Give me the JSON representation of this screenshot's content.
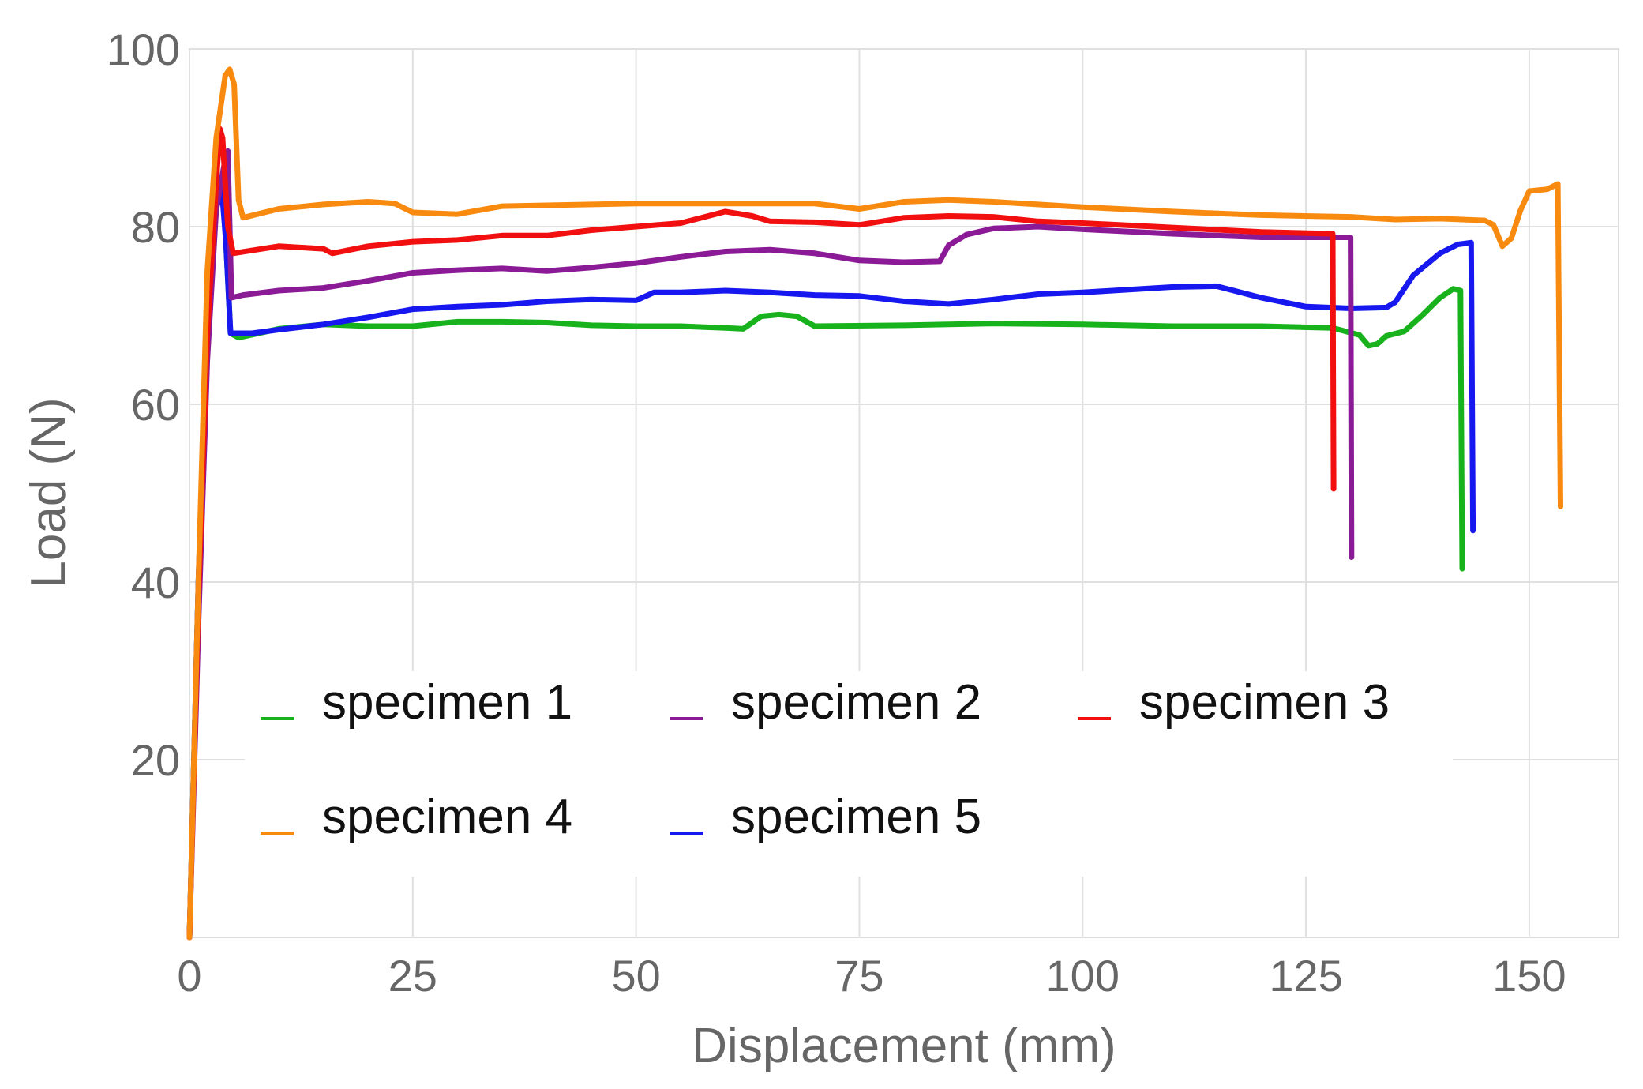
{
  "chart_data": {
    "type": "line",
    "xlabel": "Displacement (mm)",
    "ylabel": "Load (N)",
    "xlim": [
      0,
      160
    ],
    "ylim": [
      0,
      100
    ],
    "x_ticks": [
      0,
      25,
      50,
      75,
      100,
      125,
      150
    ],
    "y_ticks": [
      20,
      40,
      60,
      80,
      100
    ],
    "grid": true,
    "legend_placement": "bottom-center, inside plot, 3 columns",
    "series": [
      {
        "name": "specimen 1",
        "color": "#18b21c",
        "points": [
          [
            0,
            0
          ],
          [
            1,
            40
          ],
          [
            2,
            70
          ],
          [
            3,
            83
          ],
          [
            3.7,
            85
          ],
          [
            4.2,
            76
          ],
          [
            4.6,
            68
          ],
          [
            5.5,
            67.5
          ],
          [
            10,
            68.5
          ],
          [
            15,
            69
          ],
          [
            20,
            68.8
          ],
          [
            25,
            68.8
          ],
          [
            30,
            69.3
          ],
          [
            35,
            69.3
          ],
          [
            40,
            69.2
          ],
          [
            45,
            68.9
          ],
          [
            50,
            68.8
          ],
          [
            55,
            68.8
          ],
          [
            60,
            68.6
          ],
          [
            62,
            68.5
          ],
          [
            64,
            69.9
          ],
          [
            66,
            70.1
          ],
          [
            68,
            69.9
          ],
          [
            70,
            68.8
          ],
          [
            80,
            68.9
          ],
          [
            90,
            69.1
          ],
          [
            100,
            69
          ],
          [
            110,
            68.8
          ],
          [
            120,
            68.8
          ],
          [
            128,
            68.6
          ],
          [
            131,
            67.8
          ],
          [
            132,
            66.6
          ],
          [
            133,
            66.8
          ],
          [
            134,
            67.7
          ],
          [
            136,
            68.2
          ],
          [
            138,
            70
          ],
          [
            140,
            72
          ],
          [
            141.5,
            73
          ],
          [
            142.3,
            72.8
          ],
          [
            142.5,
            41.5
          ]
        ]
      },
      {
        "name": "specimen 2",
        "color": "#8b1a96",
        "points": [
          [
            0,
            0
          ],
          [
            1,
            35
          ],
          [
            2,
            65
          ],
          [
            3,
            82
          ],
          [
            3.9,
            87
          ],
          [
            4.3,
            88.5
          ],
          [
            4.7,
            72
          ],
          [
            6,
            72.3
          ],
          [
            10,
            72.8
          ],
          [
            15,
            73.1
          ],
          [
            20,
            73.9
          ],
          [
            25,
            74.8
          ],
          [
            30,
            75.1
          ],
          [
            35,
            75.3
          ],
          [
            40,
            75
          ],
          [
            45,
            75.4
          ],
          [
            50,
            75.9
          ],
          [
            55,
            76.6
          ],
          [
            60,
            77.2
          ],
          [
            65,
            77.4
          ],
          [
            70,
            77
          ],
          [
            75,
            76.2
          ],
          [
            80,
            76
          ],
          [
            84,
            76.1
          ],
          [
            85,
            77.9
          ],
          [
            87,
            79.1
          ],
          [
            90,
            79.8
          ],
          [
            95,
            80
          ],
          [
            100,
            79.7
          ],
          [
            110,
            79.2
          ],
          [
            120,
            78.8
          ],
          [
            128,
            78.8
          ],
          [
            130,
            78.8
          ],
          [
            130.1,
            42.8
          ]
        ]
      },
      {
        "name": "specimen 3",
        "color": "#f20f0f",
        "points": [
          [
            0,
            0
          ],
          [
            1,
            38
          ],
          [
            2,
            68
          ],
          [
            3,
            85
          ],
          [
            3.4,
            91
          ],
          [
            3.7,
            90
          ],
          [
            4.3,
            80
          ],
          [
            4.9,
            77
          ],
          [
            10,
            77.8
          ],
          [
            15,
            77.5
          ],
          [
            16,
            77
          ],
          [
            20,
            77.8
          ],
          [
            25,
            78.3
          ],
          [
            30,
            78.5
          ],
          [
            35,
            79
          ],
          [
            40,
            79
          ],
          [
            45,
            79.6
          ],
          [
            50,
            80
          ],
          [
            55,
            80.4
          ],
          [
            60,
            81.7
          ],
          [
            63,
            81.2
          ],
          [
            65,
            80.6
          ],
          [
            70,
            80.5
          ],
          [
            75,
            80.2
          ],
          [
            80,
            81
          ],
          [
            85,
            81.2
          ],
          [
            90,
            81.1
          ],
          [
            95,
            80.6
          ],
          [
            100,
            80.4
          ],
          [
            110,
            79.9
          ],
          [
            120,
            79.4
          ],
          [
            128,
            79.2
          ],
          [
            128.1,
            50.5
          ]
        ]
      },
      {
        "name": "specimen 4",
        "color": "#f88a10",
        "points": [
          [
            0,
            0
          ],
          [
            1,
            40
          ],
          [
            2,
            75
          ],
          [
            3,
            90
          ],
          [
            4,
            97
          ],
          [
            4.5,
            97.7
          ],
          [
            5,
            96
          ],
          [
            5.5,
            83
          ],
          [
            6,
            81
          ],
          [
            10,
            82
          ],
          [
            15,
            82.5
          ],
          [
            20,
            82.8
          ],
          [
            23,
            82.6
          ],
          [
            25,
            81.6
          ],
          [
            30,
            81.4
          ],
          [
            35,
            82.3
          ],
          [
            45,
            82.5
          ],
          [
            50,
            82.6
          ],
          [
            60,
            82.6
          ],
          [
            70,
            82.6
          ],
          [
            75,
            82
          ],
          [
            80,
            82.8
          ],
          [
            85,
            83
          ],
          [
            90,
            82.8
          ],
          [
            100,
            82.2
          ],
          [
            110,
            81.7
          ],
          [
            120,
            81.3
          ],
          [
            130,
            81.1
          ],
          [
            135,
            80.8
          ],
          [
            140,
            80.9
          ],
          [
            145,
            80.7
          ],
          [
            146,
            80.2
          ],
          [
            147,
            77.8
          ],
          [
            148,
            78.7
          ],
          [
            149,
            81.8
          ],
          [
            150,
            84
          ],
          [
            152,
            84.2
          ],
          [
            153.2,
            84.8
          ],
          [
            153.5,
            48.5
          ]
        ]
      },
      {
        "name": "specimen 5",
        "color": "#1717f0",
        "points": [
          [
            0,
            0
          ],
          [
            1,
            40
          ],
          [
            2,
            70
          ],
          [
            3,
            82
          ],
          [
            3.6,
            84.5
          ],
          [
            4.1,
            78
          ],
          [
            4.6,
            68
          ],
          [
            7,
            68
          ],
          [
            10,
            68.4
          ],
          [
            15,
            69
          ],
          [
            20,
            69.8
          ],
          [
            25,
            70.7
          ],
          [
            30,
            71
          ],
          [
            35,
            71.2
          ],
          [
            40,
            71.6
          ],
          [
            45,
            71.8
          ],
          [
            50,
            71.7
          ],
          [
            52,
            72.6
          ],
          [
            55,
            72.6
          ],
          [
            60,
            72.8
          ],
          [
            65,
            72.6
          ],
          [
            70,
            72.3
          ],
          [
            75,
            72.2
          ],
          [
            80,
            71.6
          ],
          [
            85,
            71.3
          ],
          [
            90,
            71.8
          ],
          [
            95,
            72.4
          ],
          [
            100,
            72.6
          ],
          [
            105,
            72.9
          ],
          [
            110,
            73.2
          ],
          [
            115,
            73.3
          ],
          [
            120,
            72
          ],
          [
            125,
            71
          ],
          [
            130,
            70.8
          ],
          [
            134,
            70.9
          ],
          [
            135,
            71.5
          ],
          [
            137,
            74.5
          ],
          [
            140,
            77
          ],
          [
            142,
            78
          ],
          [
            143.5,
            78.2
          ],
          [
            143.7,
            45.8
          ]
        ]
      }
    ]
  }
}
